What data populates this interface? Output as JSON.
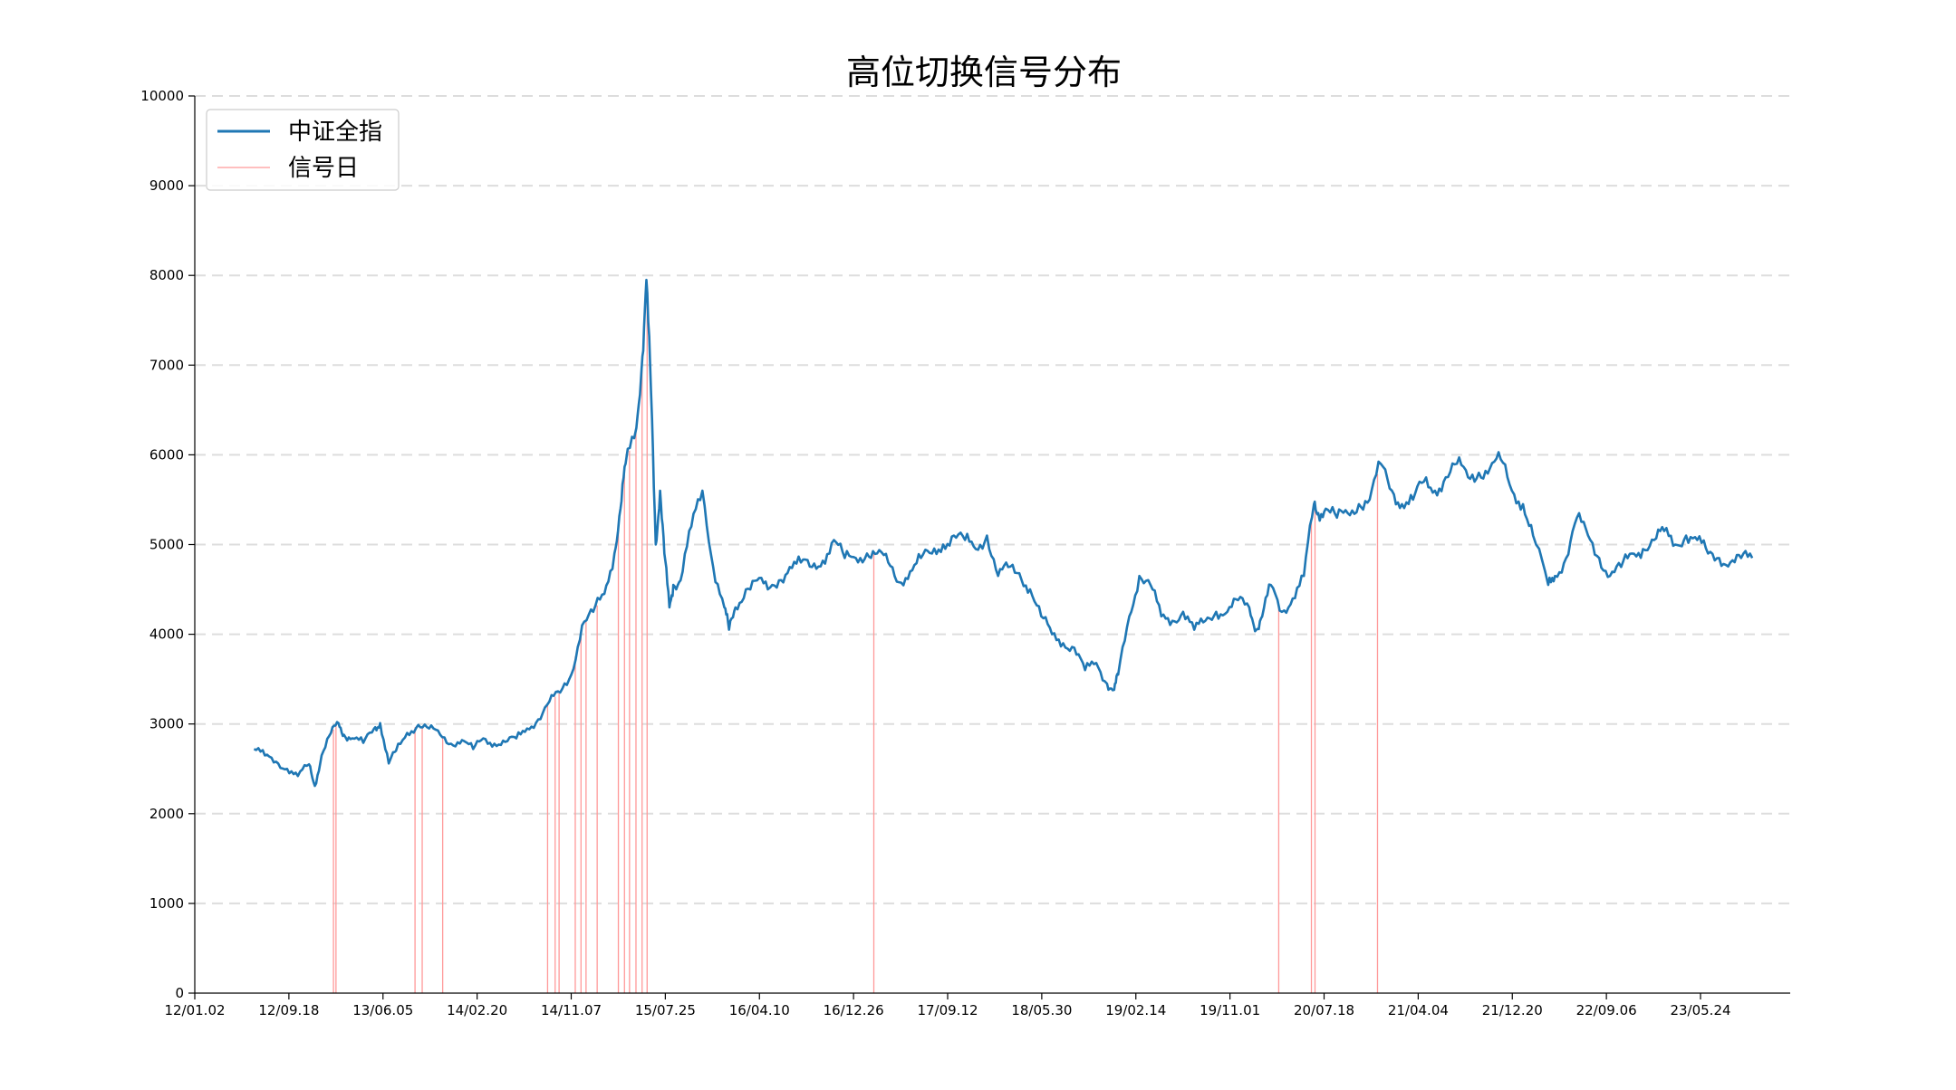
{
  "chart_data": {
    "type": "line",
    "title": "高位切换信号分布",
    "xlabel": "",
    "ylabel": "",
    "ylim": [
      0,
      10000
    ],
    "y_ticks": [
      0,
      1000,
      2000,
      3000,
      4000,
      5000,
      6000,
      7000,
      8000,
      9000,
      10000
    ],
    "x_ticks": [
      "12/01.02",
      "12/09.18",
      "13/06.05",
      "14/02.20",
      "14/11.07",
      "15/07.25",
      "16/04.10",
      "16/12.26",
      "17/09.12",
      "18/05.30",
      "19/02.14",
      "19/11.01",
      "20/07.18",
      "21/04.04",
      "21/12.20",
      "22/09.06",
      "23/05.24"
    ],
    "grid": "horizontal-dashed",
    "legend_placement": "top-left",
    "colors": {
      "line": "#1f77b4",
      "signal": "#ff9999",
      "grid": "#dddddd"
    },
    "series": [
      {
        "name": "中证全指",
        "x": [
          "2012-06-15",
          "2012-07-15",
          "2012-08-15",
          "2012-09-15",
          "2012-10-15",
          "2012-11-15",
          "2012-12-01",
          "2012-12-20",
          "2013-01-15",
          "2013-02-05",
          "2013-02-20",
          "2013-03-15",
          "2013-04-15",
          "2013-05-15",
          "2013-06-01",
          "2013-06-25",
          "2013-07-15",
          "2013-08-15",
          "2013-09-15",
          "2013-10-15",
          "2013-11-15",
          "2013-12-15",
          "2014-01-15",
          "2014-02-15",
          "2014-03-15",
          "2014-04-15",
          "2014-05-15",
          "2014-06-15",
          "2014-07-15",
          "2014-08-15",
          "2014-09-15",
          "2014-10-15",
          "2014-11-15",
          "2014-12-15",
          "2015-01-15",
          "2015-02-15",
          "2015-03-15",
          "2015-04-01",
          "2015-04-15",
          "2015-05-15",
          "2015-06-01",
          "2015-06-12",
          "2015-06-25",
          "2015-07-08",
          "2015-07-20",
          "2015-08-01",
          "2015-08-15",
          "2015-08-26",
          "2015-09-15",
          "2015-10-15",
          "2015-11-15",
          "2015-12-15",
          "2016-01-15",
          "2016-01-28",
          "2016-02-15",
          "2016-03-15",
          "2016-04-15",
          "2016-05-15",
          "2016-06-15",
          "2016-07-15",
          "2016-08-15",
          "2016-09-15",
          "2016-10-15",
          "2016-11-15",
          "2016-12-15",
          "2017-01-15",
          "2017-02-15",
          "2017-03-15",
          "2017-04-15",
          "2017-05-15",
          "2017-06-15",
          "2017-07-15",
          "2017-08-15",
          "2017-09-15",
          "2017-10-15",
          "2017-11-15",
          "2017-12-15",
          "2018-01-15",
          "2018-02-15",
          "2018-03-15",
          "2018-04-15",
          "2018-05-15",
          "2018-06-15",
          "2018-07-15",
          "2018-08-15",
          "2018-09-15",
          "2018-10-15",
          "2018-11-15",
          "2018-12-15",
          "2019-01-04",
          "2019-01-15",
          "2019-02-15",
          "2019-03-15",
          "2019-04-15",
          "2019-05-15",
          "2019-06-15",
          "2019-07-15",
          "2019-08-15",
          "2019-09-15",
          "2019-10-15",
          "2019-11-15",
          "2019-12-15",
          "2020-01-15",
          "2020-02-04",
          "2020-02-20",
          "2020-03-15",
          "2020-04-15",
          "2020-05-15",
          "2020-06-15",
          "2020-07-13",
          "2020-07-25",
          "2020-08-15",
          "2020-09-15",
          "2020-10-15",
          "2020-11-15",
          "2020-12-15",
          "2021-01-15",
          "2021-02-15",
          "2021-03-15",
          "2021-04-15",
          "2021-05-15",
          "2021-06-15",
          "2021-07-15",
          "2021-08-15",
          "2021-09-15",
          "2021-10-15",
          "2021-11-15",
          "2021-12-15",
          "2022-01-15",
          "2022-02-15",
          "2022-03-15",
          "2022-04-26",
          "2022-05-15",
          "2022-06-15",
          "2022-07-15",
          "2022-08-15",
          "2022-09-15",
          "2022-10-15",
          "2022-11-15",
          "2022-12-15",
          "2023-01-15",
          "2023-02-15",
          "2023-03-15",
          "2023-04-15",
          "2023-05-15",
          "2023-06-15",
          "2023-07-15",
          "2023-08-15",
          "2023-09-15",
          "2023-10-15",
          "2023-11-15"
        ],
        "values": [
          2720,
          2650,
          2580,
          2500,
          2420,
          2550,
          2310,
          2650,
          2900,
          3010,
          2880,
          2840,
          2790,
          2950,
          3010,
          2560,
          2700,
          2900,
          2990,
          2950,
          2880,
          2780,
          2820,
          2720,
          2840,
          2780,
          2800,
          2840,
          2950,
          3050,
          3250,
          3350,
          3550,
          4100,
          4250,
          4450,
          4900,
          5400,
          5900,
          6300,
          7100,
          7950,
          6700,
          5000,
          5600,
          4900,
          4300,
          4550,
          4600,
          5200,
          5600,
          4750,
          4300,
          4050,
          4300,
          4500,
          4600,
          4500,
          4600,
          4750,
          4800,
          4750,
          4820,
          5050,
          4850,
          4850,
          4900,
          4900,
          4800,
          4580,
          4700,
          4850,
          4900,
          5000,
          5100,
          5050,
          4950,
          5100,
          4650,
          4750,
          4680,
          4500,
          4200,
          4000,
          3900,
          3850,
          3600,
          3680,
          3450,
          3380,
          3550,
          4200,
          4650,
          4550,
          4200,
          4150,
          4250,
          4050,
          4150,
          4250,
          4250,
          4380,
          4300,
          4050,
          4200,
          4550,
          4250,
          4400,
          4650,
          5450,
          5350,
          5400,
          5300,
          5350,
          5450,
          5500,
          5900,
          5600,
          5450,
          5500,
          5700,
          5600,
          5750,
          5900,
          5750,
          5800,
          5850,
          5950,
          5600,
          5450,
          5100,
          4550,
          4650,
          4850,
          5300,
          5100,
          4850,
          4650,
          4750,
          4900,
          4950,
          5050,
          5150,
          5000,
          5100,
          5050,
          4900,
          4850,
          4800,
          4850,
          4850
        ]
      },
      {
        "name": "信号日",
        "signal_dates": [
          "2013-01-22",
          "2013-01-29",
          "2013-09-06",
          "2013-09-26",
          "2013-11-22",
          "2014-09-10",
          "2014-10-01",
          "2014-10-12",
          "2014-11-26",
          "2014-12-12",
          "2014-12-26",
          "2015-01-26",
          "2015-03-26",
          "2015-04-12",
          "2015-04-26",
          "2015-05-14",
          "2015-05-31",
          "2015-06-14",
          "2017-03-06",
          "2020-04-06",
          "2020-07-06",
          "2020-07-16",
          "2021-01-06"
        ]
      }
    ]
  }
}
